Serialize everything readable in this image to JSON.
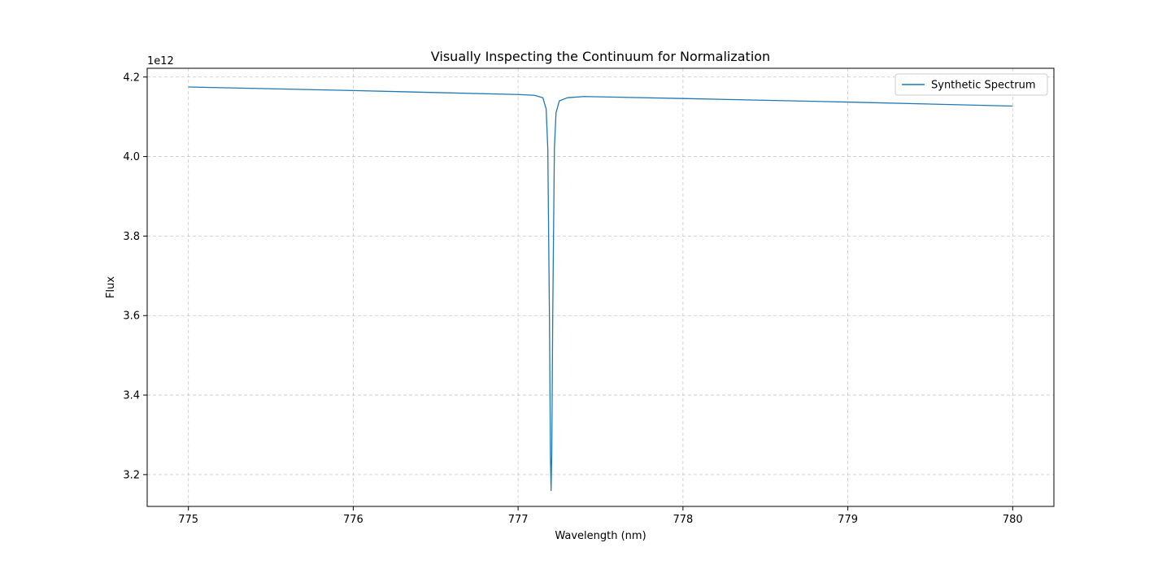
{
  "chart_data": {
    "type": "line",
    "title": "Visually Inspecting the Continuum for Normalization",
    "xlabel": "Wavelength (nm)",
    "ylabel": "Flux",
    "y_offset_label": "1e12",
    "y_scale": 1000000000000.0,
    "xlim": [
      774.75,
      780.25
    ],
    "ylim": [
      3.12,
      4.222
    ],
    "x_ticks": [
      775,
      776,
      777,
      778,
      779,
      780
    ],
    "x_tick_labels": [
      "775",
      "776",
      "777",
      "778",
      "779",
      "780"
    ],
    "y_ticks": [
      3.2,
      3.4,
      3.6,
      3.8,
      4.0,
      4.2
    ],
    "y_tick_labels": [
      "3.2",
      "3.4",
      "3.6",
      "3.8",
      "4.0",
      "4.2"
    ],
    "grid": true,
    "legend_position": "top-right",
    "series": [
      {
        "name": "Synthetic Spectrum",
        "color": "#1f77b4",
        "x": [
          775.0,
          776.0,
          777.0,
          777.1,
          777.15,
          777.17,
          777.18,
          777.19,
          777.196,
          777.2,
          777.204,
          777.21,
          777.22,
          777.23,
          777.25,
          777.3,
          777.4,
          778.0,
          779.0,
          780.0
        ],
        "y": [
          4.175,
          4.166,
          4.156,
          4.154,
          4.148,
          4.12,
          4.02,
          3.6,
          3.25,
          3.16,
          3.25,
          3.6,
          4.02,
          4.11,
          4.14,
          4.148,
          4.151,
          4.146,
          4.137,
          4.127
        ]
      }
    ]
  }
}
